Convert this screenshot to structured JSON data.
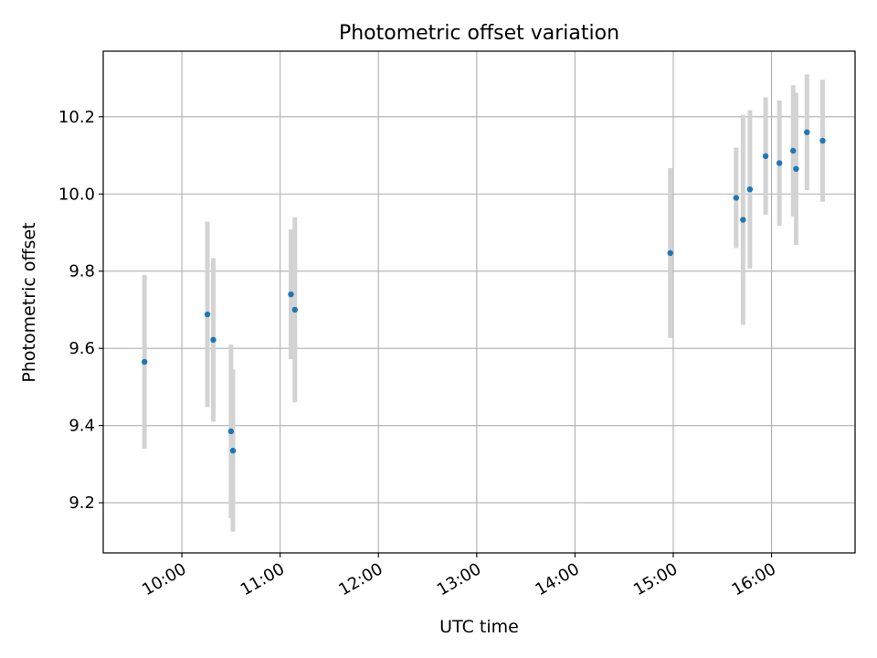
{
  "chart_data": {
    "type": "scatter",
    "title": "Photometric offset variation",
    "xlabel": "UTC time",
    "ylabel": "Photometric offset",
    "xlim_hours": [
      9.2,
      16.85
    ],
    "ylim": [
      9.07,
      10.37
    ],
    "xticks": [
      {
        "hour": 10,
        "label": "10:00"
      },
      {
        "hour": 11,
        "label": "11:00"
      },
      {
        "hour": 12,
        "label": "12:00"
      },
      {
        "hour": 13,
        "label": "13:00"
      },
      {
        "hour": 14,
        "label": "14:00"
      },
      {
        "hour": 15,
        "label": "15:00"
      },
      {
        "hour": 16,
        "label": "16:00"
      }
    ],
    "yticks": [
      {
        "value": 9.2,
        "label": "9.2"
      },
      {
        "value": 9.4,
        "label": "9.4"
      },
      {
        "value": 9.6,
        "label": "9.6"
      },
      {
        "value": 9.8,
        "label": "9.8"
      },
      {
        "value": 10.0,
        "label": "10.0"
      },
      {
        "value": 10.2,
        "label": "10.2"
      }
    ],
    "grid": true,
    "marker_color": "#1f77b4",
    "errorbar_color": "#d3d3d3",
    "points": [
      {
        "t": 9.62,
        "y": 9.565,
        "err": 0.225
      },
      {
        "t": 10.26,
        "y": 9.688,
        "err": 0.24
      },
      {
        "t": 10.32,
        "y": 9.622,
        "err": 0.212
      },
      {
        "t": 10.5,
        "y": 9.385,
        "err": 0.225
      },
      {
        "t": 10.52,
        "y": 9.335,
        "err": 0.21
      },
      {
        "t": 11.11,
        "y": 9.74,
        "err": 0.168
      },
      {
        "t": 11.15,
        "y": 9.7,
        "err": 0.24
      },
      {
        "t": 14.97,
        "y": 9.847,
        "err": 0.22
      },
      {
        "t": 15.64,
        "y": 9.99,
        "err": 0.13
      },
      {
        "t": 15.71,
        "y": 9.933,
        "err": 0.272
      },
      {
        "t": 15.78,
        "y": 10.012,
        "err": 0.205
      },
      {
        "t": 15.94,
        "y": 10.098,
        "err": 0.152
      },
      {
        "t": 16.08,
        "y": 10.08,
        "err": 0.162
      },
      {
        "t": 16.22,
        "y": 10.112,
        "err": 0.17
      },
      {
        "t": 16.25,
        "y": 10.065,
        "err": 0.197
      },
      {
        "t": 16.36,
        "y": 10.16,
        "err": 0.15
      },
      {
        "t": 16.52,
        "y": 10.138,
        "err": 0.158
      }
    ]
  }
}
